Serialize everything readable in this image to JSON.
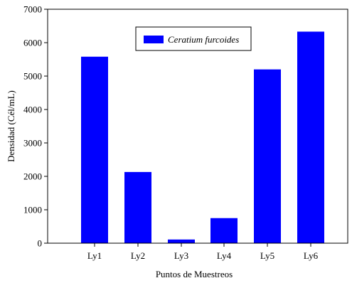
{
  "chart_data": {
    "type": "bar",
    "categories": [
      "Ly1",
      "Ly2",
      "Ly3",
      "Ly4",
      "Ly5",
      "Ly6"
    ],
    "series": [
      {
        "name": "Ceratium furcoides",
        "values": [
          5580,
          2130,
          110,
          750,
          5200,
          6330
        ]
      }
    ],
    "xlabel": "Puntos de Muestreos",
    "ylabel": "Densidad (Cél/mL)",
    "ylim": [
      0,
      7000
    ],
    "yticks": [
      0,
      1000,
      2000,
      3000,
      4000,
      5000,
      6000,
      7000
    ],
    "grid": false,
    "legend_position": "top-center",
    "bar_color": "#0000ff"
  }
}
